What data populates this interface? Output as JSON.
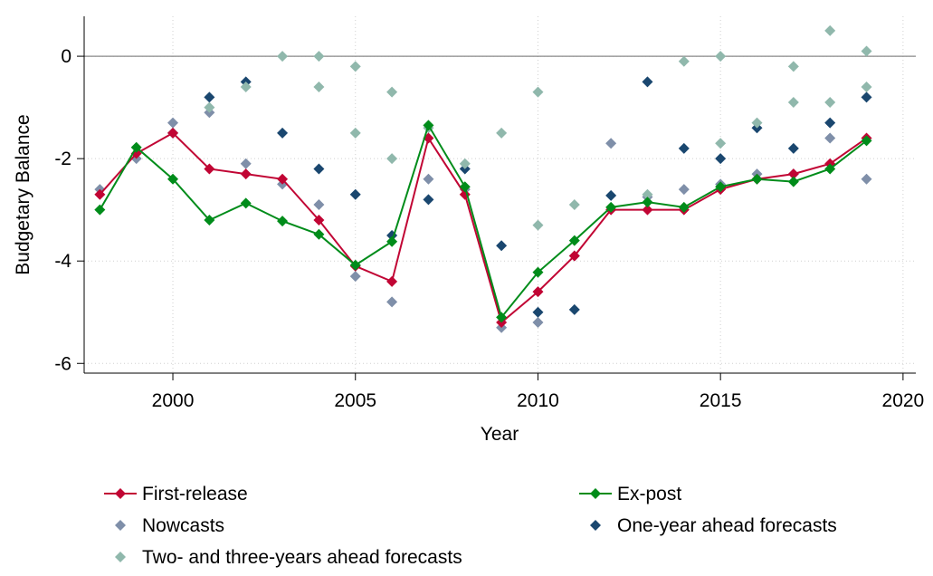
{
  "chart_data": {
    "type": "line",
    "xlabel": "Year",
    "ylabel": "Budgetary Balance",
    "xlim": [
      1997.57,
      2020.35
    ],
    "ylim": [
      -6.19,
      0.78
    ],
    "xticks": [
      2000,
      2005,
      2010,
      2015,
      2020
    ],
    "yticks": [
      0,
      -2,
      -4,
      -6
    ],
    "grid": true,
    "reference_line": 0,
    "legend": "bottom",
    "series": [
      {
        "name": "First-release",
        "color": "#c10534",
        "style": "line+markers",
        "x": [
          1998,
          1999,
          2000,
          2001,
          2002,
          2003,
          2004,
          2005,
          2006,
          2007,
          2008,
          2009,
          2010,
          2011,
          2012,
          2013,
          2014,
          2015,
          2016,
          2017,
          2018,
          2019
        ],
        "values": [
          -2.7,
          -1.9,
          -1.5,
          -2.2,
          -2.3,
          -2.4,
          -3.2,
          -4.1,
          -4.4,
          -1.6,
          -2.7,
          -5.2,
          -4.6,
          -3.9,
          -3.0,
          -3.0,
          -3.0,
          -2.6,
          -2.4,
          -2.3,
          -2.1,
          -1.6
        ]
      },
      {
        "name": "Ex-post",
        "color": "#008c1a",
        "style": "line+markers",
        "x": [
          1998,
          1999,
          2000,
          2001,
          2002,
          2003,
          2004,
          2005,
          2006,
          2007,
          2008,
          2009,
          2010,
          2011,
          2012,
          2013,
          2014,
          2015,
          2016,
          2017,
          2018,
          2019
        ],
        "values": [
          -3.0,
          -1.78,
          -2.4,
          -3.2,
          -2.87,
          -3.22,
          -3.48,
          -4.08,
          -3.62,
          -1.35,
          -2.55,
          -5.1,
          -4.22,
          -3.6,
          -2.95,
          -2.85,
          -2.95,
          -2.55,
          -2.4,
          -2.45,
          -2.2,
          -1.65
        ]
      },
      {
        "name": "Nowcasts",
        "color": "#7f8fa9",
        "style": "markers",
        "x": [
          1998,
          1999,
          2000,
          2001,
          2002,
          2003,
          2004,
          2005,
          2006,
          2007,
          2008,
          2009,
          2010,
          2011,
          2012,
          2013,
          2014,
          2015,
          2016,
          2017,
          2018,
          2019
        ],
        "values": [
          -2.6,
          -2.0,
          -1.3,
          -1.1,
          -2.1,
          -2.5,
          -2.9,
          -4.3,
          -4.8,
          -2.4,
          -2.6,
          -5.3,
          -5.2,
          -3.9,
          -1.7,
          -2.75,
          -2.6,
          -2.5,
          -2.3,
          -2.3,
          -1.6,
          -2.4
        ]
      },
      {
        "name": "One-year ahead forecasts",
        "color": "#1a476f",
        "style": "markers",
        "x": [
          2000,
          2001,
          2002,
          2003,
          2004,
          2005,
          2006,
          2007,
          2008,
          2009,
          2010,
          2011,
          2012,
          2013,
          2014,
          2015,
          2016,
          2017,
          2018,
          2019
        ],
        "values": [
          -1.5,
          -0.8,
          -0.5,
          -1.5,
          -2.2,
          -2.7,
          -3.5,
          -2.8,
          -2.2,
          -3.7,
          -5.0,
          -4.95,
          -2.72,
          -0.5,
          -1.8,
          -2.0,
          -1.4,
          -1.8,
          -1.3,
          -0.8
        ]
      },
      {
        "name": "Two- and three-years ahead forecasts",
        "color": "#90b8ac",
        "style": "markers",
        "x": [
          2001,
          2002,
          2003,
          2004,
          2004,
          2005,
          2005,
          2006,
          2006,
          2007,
          2008,
          2009,
          2010,
          2010,
          2011,
          2013,
          2014,
          2015,
          2015,
          2016,
          2017,
          2017,
          2018,
          2018,
          2019,
          2019
        ],
        "values": [
          -1.0,
          -0.6,
          0.0,
          0.0,
          -0.6,
          -0.2,
          -1.5,
          -0.7,
          -2.0,
          -1.4,
          -2.1,
          -1.5,
          -0.7,
          -3.3,
          -2.9,
          -2.7,
          -0.1,
          0.0,
          -1.7,
          -1.3,
          -0.2,
          -0.9,
          0.5,
          -0.9,
          0.1,
          -0.6
        ]
      }
    ]
  }
}
